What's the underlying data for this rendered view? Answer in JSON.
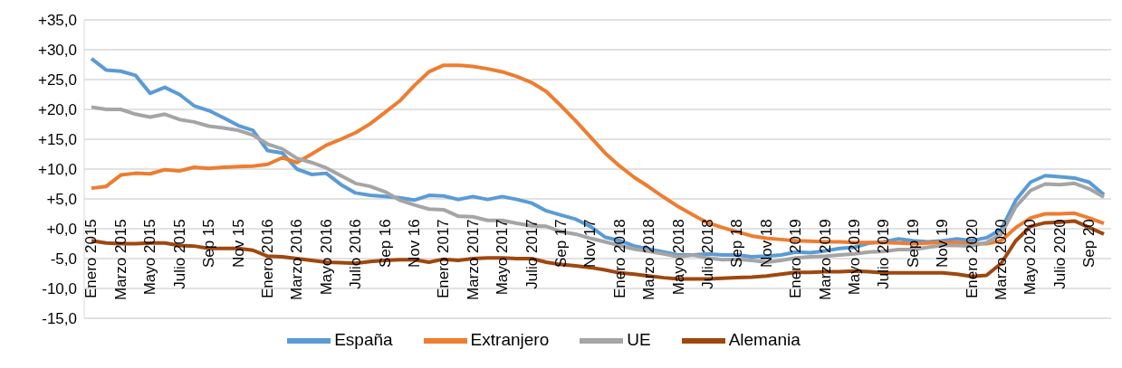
{
  "chart_data": {
    "type": "line",
    "categories": [
      "Enero 2015",
      null,
      "Marzo 2015",
      null,
      "Mayo 2015",
      null,
      "Julio 2015",
      null,
      "Sep 15",
      null,
      "Nov 15",
      null,
      "Enero 2016",
      null,
      "Marzo 2016",
      null,
      "Mayo 2016",
      null,
      "Julio 2016",
      null,
      "Sep 16",
      null,
      "Nov 16",
      null,
      "Enero 2017",
      null,
      "Marzo 2017",
      null,
      "Mayo 2017",
      null,
      "Julio 2017",
      null,
      "Sep 17",
      null,
      "Nov 17",
      null,
      "Enero 2018",
      null,
      "Marzo 2018",
      null,
      "Mayo 2018",
      null,
      "Julio 2018",
      null,
      "Sep 18",
      null,
      "Nov 18",
      null,
      "Enero 2019",
      null,
      "Marzo 2019",
      null,
      "Mayo 2019",
      null,
      "Julio 2019",
      null,
      "Sep 19",
      null,
      "Nov 19",
      null,
      "Enero 2020",
      null,
      "Marzo 2020",
      null,
      "Mayo 2020",
      null,
      "Julio 2020",
      null,
      "Sep 20",
      null
    ],
    "series": [
      {
        "name": "España",
        "color": "#5b9bd5",
        "values": [
          28.5,
          26.6,
          26.4,
          25.7,
          22.7,
          23.7,
          22.5,
          20.6,
          19.8,
          18.6,
          17.3,
          16.5,
          13.1,
          12.7,
          10.0,
          9.1,
          9.3,
          7.4,
          6.0,
          5.6,
          5.4,
          5.2,
          4.8,
          5.6,
          5.5,
          4.9,
          5.4,
          4.9,
          5.4,
          4.9,
          4.3,
          3.0,
          2.3,
          1.6,
          0.4,
          -1.4,
          -2.0,
          -2.9,
          -3.4,
          -3.9,
          -4.4,
          -4.4,
          -4.2,
          -4.4,
          -4.4,
          -4.7,
          -4.6,
          -4.4,
          -3.9,
          -4.0,
          -3.7,
          -3.3,
          -3.1,
          -2.4,
          -2.2,
          -1.7,
          -2.0,
          -2.2,
          -2.0,
          -1.7,
          -2.0,
          -1.5,
          -0.1,
          4.8,
          7.8,
          8.9,
          8.7,
          8.5,
          7.8,
          5.7
        ]
      },
      {
        "name": "Extranjero",
        "color": "#ed7d31",
        "values": [
          6.8,
          7.1,
          9.0,
          9.3,
          9.2,
          9.9,
          9.7,
          10.3,
          10.1,
          10.3,
          10.4,
          10.5,
          10.8,
          11.9,
          11.1,
          12.5,
          14.0,
          15.0,
          16.1,
          17.6,
          19.5,
          21.4,
          24.0,
          26.3,
          27.4,
          27.4,
          27.2,
          26.8,
          26.3,
          25.5,
          24.5,
          23.0,
          20.6,
          18.1,
          15.4,
          12.7,
          10.5,
          8.6,
          7.0,
          5.3,
          3.7,
          2.3,
          1.0,
          0.2,
          -0.5,
          -1.2,
          -1.6,
          -1.8,
          -2.0,
          -2.1,
          -2.2,
          -2.2,
          -2.3,
          -2.3,
          -2.3,
          -2.4,
          -2.5,
          -2.4,
          -2.3,
          -2.3,
          -2.5,
          -2.5,
          -2.0,
          0.2,
          1.8,
          2.5,
          2.5,
          2.6,
          1.8,
          0.9
        ]
      },
      {
        "name": "UE",
        "color": "#a5a5a5",
        "values": [
          20.4,
          20.0,
          20.0,
          19.2,
          18.7,
          19.2,
          18.3,
          17.9,
          17.2,
          16.9,
          16.5,
          15.7,
          14.2,
          13.4,
          11.8,
          11.1,
          10.2,
          8.9,
          7.6,
          7.1,
          6.2,
          4.8,
          4.0,
          3.3,
          3.2,
          2.1,
          2.0,
          1.4,
          1.4,
          0.9,
          0.5,
          0.4,
          -0.5,
          -0.9,
          -1.6,
          -2.2,
          -2.8,
          -3.4,
          -3.8,
          -4.2,
          -4.7,
          -4.4,
          -4.9,
          -5.2,
          -5.1,
          -5.3,
          -5.6,
          -5.3,
          -4.9,
          -4.7,
          -4.6,
          -4.4,
          -4.2,
          -3.9,
          -3.8,
          -3.5,
          -3.5,
          -3.1,
          -2.8,
          -2.8,
          -2.9,
          -2.3,
          -0.9,
          3.7,
          6.4,
          7.5,
          7.4,
          7.6,
          6.7,
          5.3
        ]
      },
      {
        "name": "Alemania",
        "color": "#9e480e",
        "values": [
          -2.0,
          -2.4,
          -2.5,
          -2.5,
          -2.4,
          -2.4,
          -2.8,
          -2.9,
          -3.3,
          -3.3,
          -3.3,
          -3.6,
          -4.6,
          -4.7,
          -5.0,
          -5.3,
          -5.6,
          -5.7,
          -5.8,
          -5.5,
          -5.3,
          -5.2,
          -5.2,
          -5.6,
          -5.1,
          -5.3,
          -5.0,
          -4.9,
          -4.9,
          -5.0,
          -5.0,
          -5.6,
          -6.0,
          -6.2,
          -6.5,
          -6.9,
          -7.4,
          -7.6,
          -7.9,
          -8.2,
          -8.4,
          -8.4,
          -8.4,
          -8.3,
          -8.2,
          -8.1,
          -7.9,
          -7.6,
          -7.3,
          -7.3,
          -7.2,
          -7.2,
          -7.1,
          -7.2,
          -7.4,
          -7.4,
          -7.4,
          -7.4,
          -7.4,
          -7.6,
          -8.0,
          -7.8,
          -5.8,
          -2.0,
          0.4,
          1.0,
          1.1,
          1.3,
          0.2,
          -0.9
        ]
      }
    ],
    "ylim": [
      -15,
      35
    ],
    "yticks": [
      {
        "value": -15,
        "label": "-15,0"
      },
      {
        "value": -10,
        "label": "-10,0"
      },
      {
        "value": -5,
        "label": "-5,0"
      },
      {
        "value": 0,
        "label": "+0,0"
      },
      {
        "value": 5,
        "label": "+5,0"
      },
      {
        "value": 10,
        "label": "+10,0"
      },
      {
        "value": 15,
        "label": "+15,0"
      },
      {
        "value": 20,
        "label": "+20,0"
      },
      {
        "value": 25,
        "label": "+25,0"
      },
      {
        "value": 30,
        "label": "+30,0"
      },
      {
        "value": 35,
        "label": "+35,0"
      }
    ],
    "grid": "y",
    "legend": "bottom",
    "marker": "none",
    "line_style": "solid"
  }
}
